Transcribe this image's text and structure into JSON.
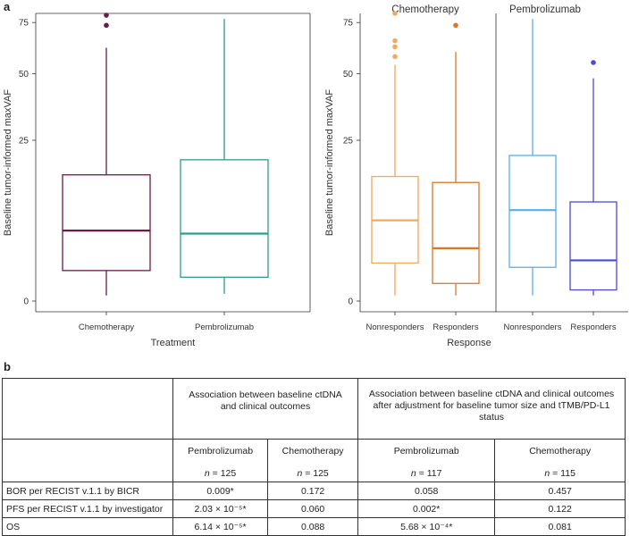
{
  "panel_a_label": "a",
  "panel_b_label": "b",
  "chart_data": [
    {
      "type": "box",
      "ylabel": "Baseline tumor-informed maxVAF",
      "xlabel": "Treatment",
      "y_scale": "sqrt",
      "y_ticks": [
        0,
        25,
        50,
        75
      ],
      "ylim": [
        0,
        80
      ],
      "categories": [
        "Chemotherapy",
        "Pembrolizumab"
      ],
      "colors": [
        "#6b1a4d",
        "#2a9d8f"
      ],
      "boxes": [
        {
          "category": "Chemotherapy",
          "min": 0.03,
          "q1": 0.9,
          "median": 4.8,
          "q3": 15.4,
          "max": 62,
          "outliers": [
            73.5,
            79
          ]
        },
        {
          "category": "Pembrolizumab",
          "min": 0.05,
          "q1": 0.55,
          "median": 4.4,
          "q3": 19.3,
          "max": 77,
          "outliers": []
        }
      ]
    },
    {
      "type": "box",
      "ylabel": "Baseline tumor-informed maxVAF",
      "xlabel": "Response",
      "y_scale": "sqrt",
      "y_ticks": [
        0,
        25,
        50,
        75
      ],
      "ylim": [
        0,
        80
      ],
      "facets": [
        {
          "title": "Chemotherapy",
          "boxes": [
            {
              "category": "Nonresponders",
              "color": "#f0a95e",
              "min": 0.03,
              "q1": 1.4,
              "median": 6.3,
              "q3": 15.0,
              "max": 54,
              "outliers": [
                57.8,
                62.5,
                65.5,
                80
              ]
            },
            {
              "category": "Responders",
              "color": "#d9782a",
              "min": 0.03,
              "q1": 0.3,
              "median": 2.7,
              "q3": 13.6,
              "max": 60,
              "outliers": [
                73.5
              ]
            }
          ]
        },
        {
          "title": "Pembrolizumab",
          "boxes": [
            {
              "category": "Nonresponders",
              "color": "#5aaee8",
              "min": 0.03,
              "q1": 1.1,
              "median": 8.0,
              "q3": 20.5,
              "max": 77,
              "outliers": []
            },
            {
              "category": "Responders",
              "color": "#4a4ad4",
              "min": 0.03,
              "q1": 0.12,
              "median": 1.6,
              "q3": 9.5,
              "max": 48,
              "outliers": [
                55
              ]
            }
          ]
        }
      ]
    }
  ],
  "table": {
    "group1_header": "Association  between baseline ctDNA and clinical outcomes",
    "group2_header": "Association between baseline ctDNA and clinical outcomes after adjustment for baseline tumor size and tTMB/PD-L1 status",
    "columns": [
      {
        "drug": "Pembrolizumab",
        "n_label": "n",
        "n_value": " = 125"
      },
      {
        "drug": "Chemotherapy",
        "n_label": "n",
        "n_value": " = 125"
      },
      {
        "drug": "Pembrolizumab",
        "n_label": "n",
        "n_value": " = 117"
      },
      {
        "drug": "Chemotherapy",
        "n_label": "n",
        "n_value": " = 115"
      }
    ],
    "rows": [
      {
        "label": "BOR per RECIST v.1.1 by BICR",
        "cells": [
          "0.009*",
          "0.172",
          "0.058",
          "0.457"
        ]
      },
      {
        "label": "PFS per RECIST v.1.1 by investigator",
        "cells": [
          "2.03 × 10⁻⁵*",
          "0.060",
          "0.002*",
          "0.122"
        ]
      },
      {
        "label": "OS",
        "cells": [
          "6.14 × 10⁻⁵*",
          "0.088",
          "5.68 × 10⁻⁴*",
          "0.081"
        ]
      }
    ]
  }
}
